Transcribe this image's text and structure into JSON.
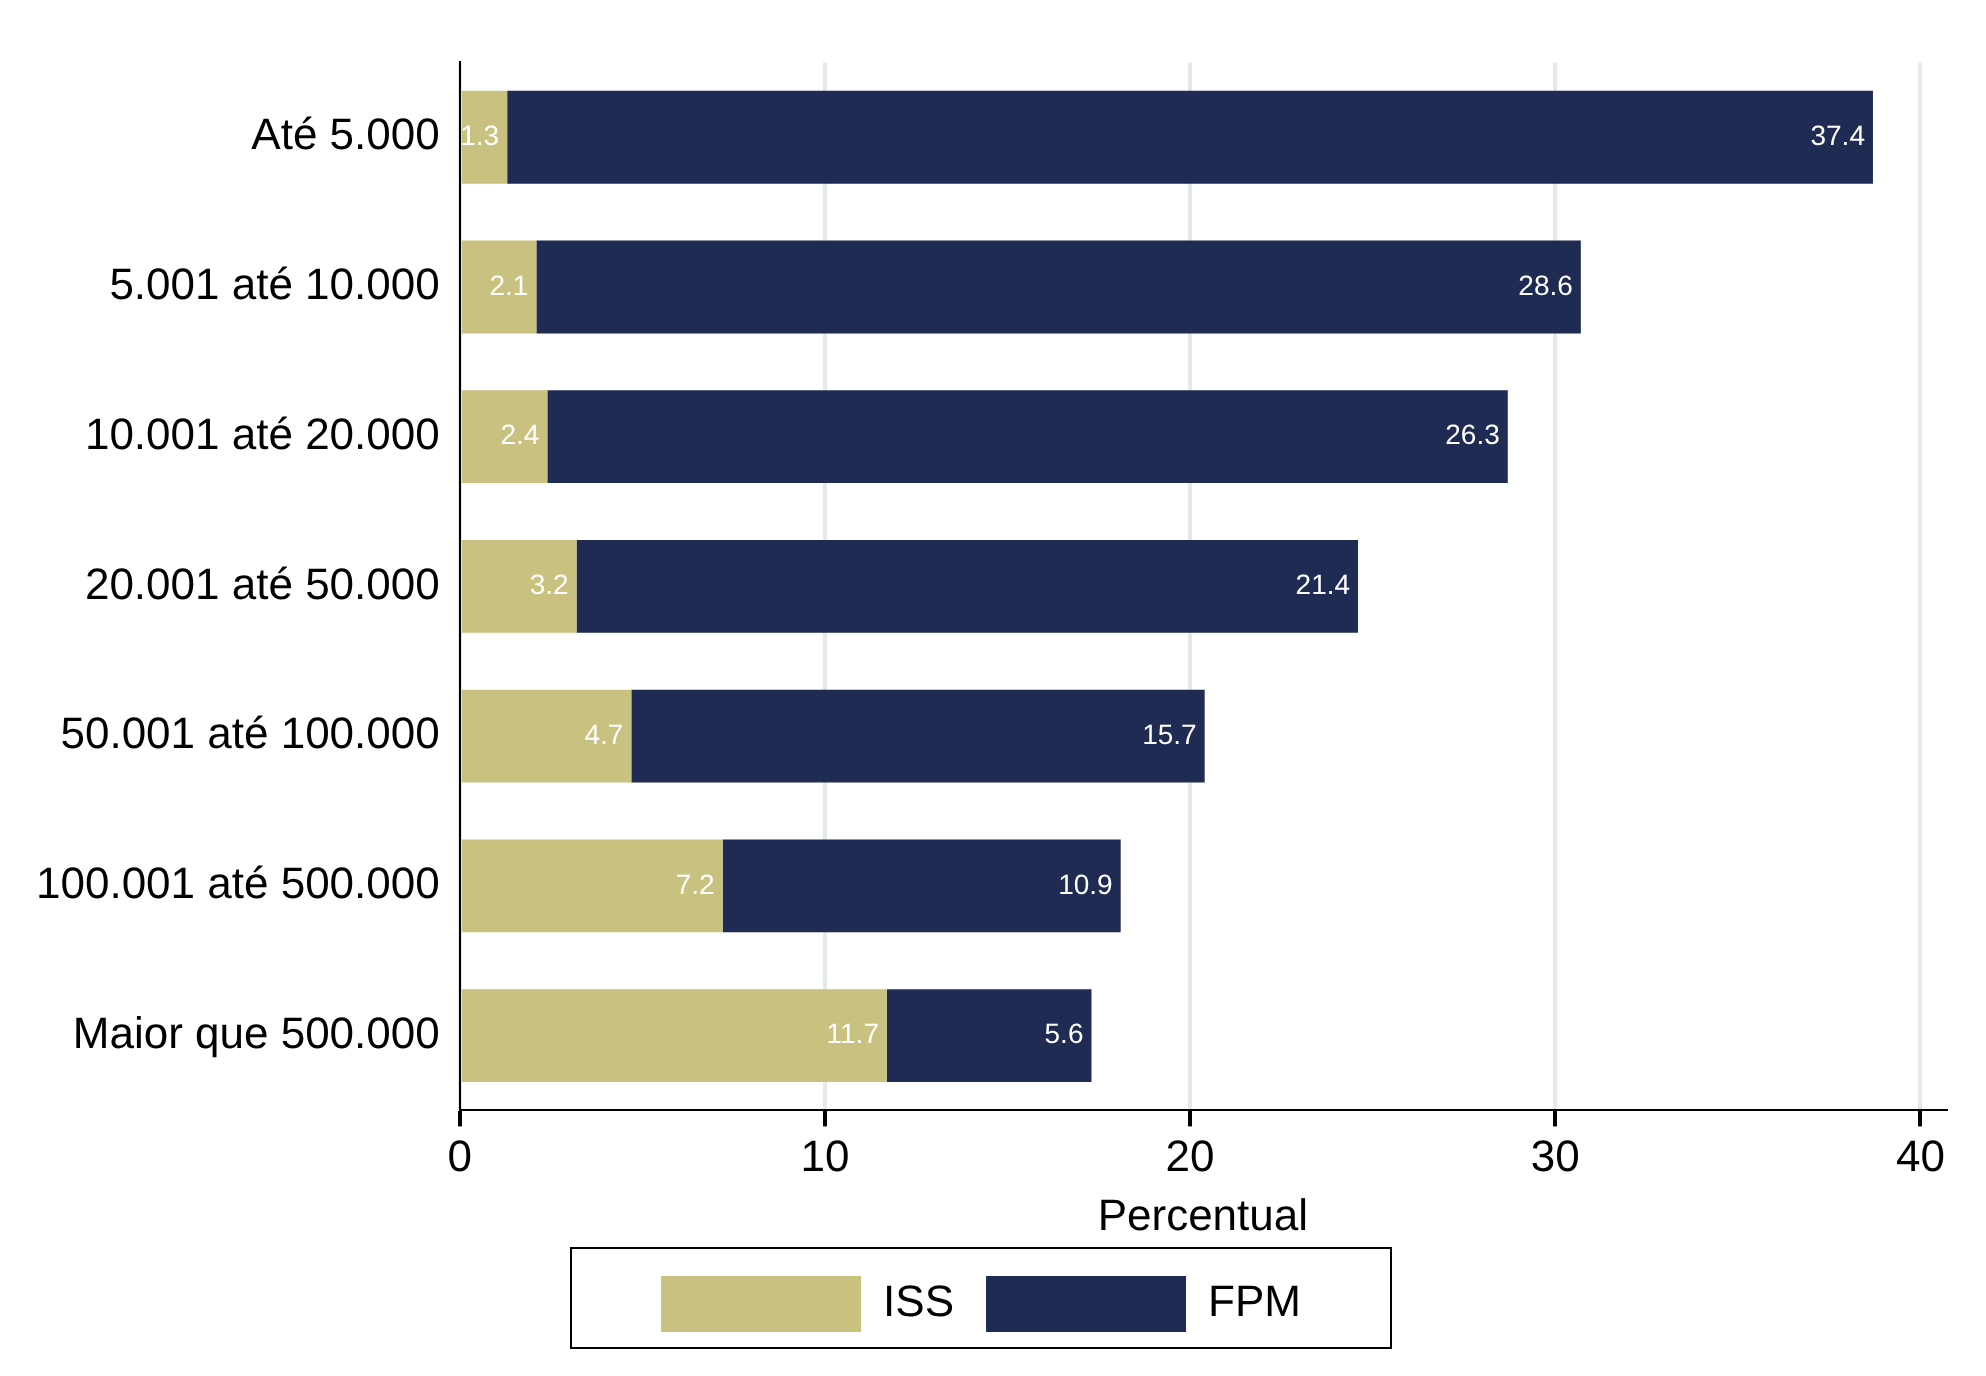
{
  "chart_data": {
    "type": "bar",
    "orientation": "horizontal",
    "stacked": true,
    "xlabel": "Percentual",
    "categories": [
      "Até 5.000",
      "5.001 até 10.000",
      "10.001 até 20.000",
      "20.001 até 50.000",
      "50.001 até 100.000",
      "100.001 até 500.000",
      "Maior que 500.000"
    ],
    "series": [
      {
        "name": "ISS",
        "color": "#c9c17f",
        "values": [
          1.3,
          2.1,
          2.4,
          3.2,
          4.7,
          7.2,
          11.7
        ]
      },
      {
        "name": "FPM",
        "color": "#1f2b52",
        "values": [
          37.4,
          28.6,
          26.3,
          21.4,
          15.7,
          10.9,
          5.6
        ]
      }
    ],
    "xlim": [
      0,
      40.7
    ],
    "xticks": [
      0,
      10,
      20,
      30,
      40
    ],
    "grid": "x",
    "legend": "bottom",
    "data_labels": true
  }
}
